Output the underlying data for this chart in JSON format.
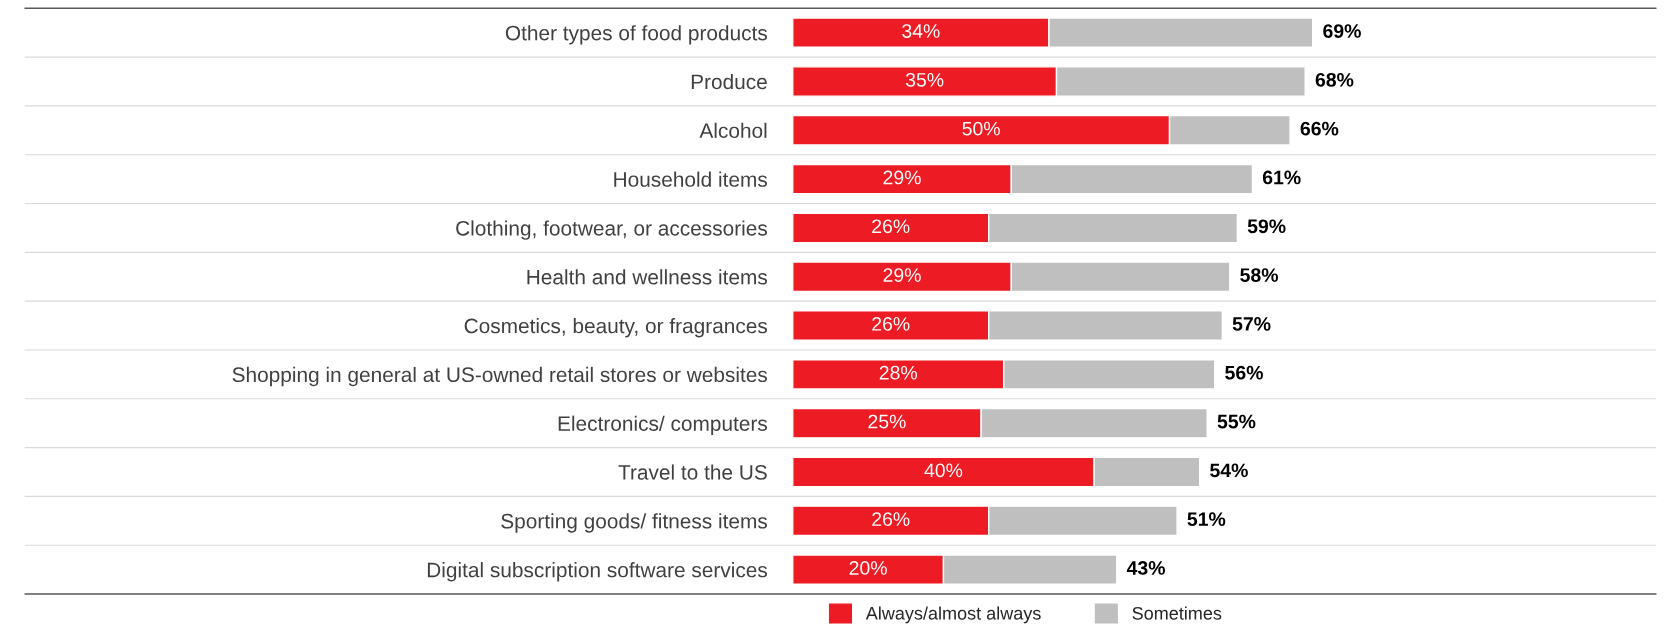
{
  "chart_data": {
    "type": "bar",
    "orientation": "horizontal",
    "stacked": true,
    "grid": "y",
    "legend": "bottom",
    "categories": [
      "Other types of food products",
      "Produce",
      "Alcohol",
      "Household items",
      "Clothing, footwear, or accessories",
      "Health and wellness items",
      "Cosmetics, beauty, or fragrances",
      "Shopping in general at US-owned retail stores or websites",
      "Electronics/ computers",
      "Travel to the US",
      "Sporting goods/ fitness items",
      "Digital subscription software services"
    ],
    "series": [
      {
        "name": "Always/almost always",
        "color": "#ed1c24",
        "values": [
          34,
          35,
          50,
          29,
          26,
          29,
          26,
          28,
          25,
          40,
          26,
          20
        ],
        "value_labels": [
          "34%",
          "35%",
          "50%",
          "29%",
          "26%",
          "29%",
          "26%",
          "28%",
          "25%",
          "40%",
          "26%",
          "20%"
        ]
      },
      {
        "name": "Sometimes",
        "color": "#bfbfbf",
        "values": [
          35,
          33,
          16,
          32,
          33,
          29,
          31,
          28,
          30,
          14,
          25,
          23
        ]
      }
    ],
    "totals": [
      "69%",
      "68%",
      "66%",
      "61%",
      "59%",
      "58%",
      "57%",
      "56%",
      "55%",
      "54%",
      "51%",
      "43%"
    ]
  }
}
